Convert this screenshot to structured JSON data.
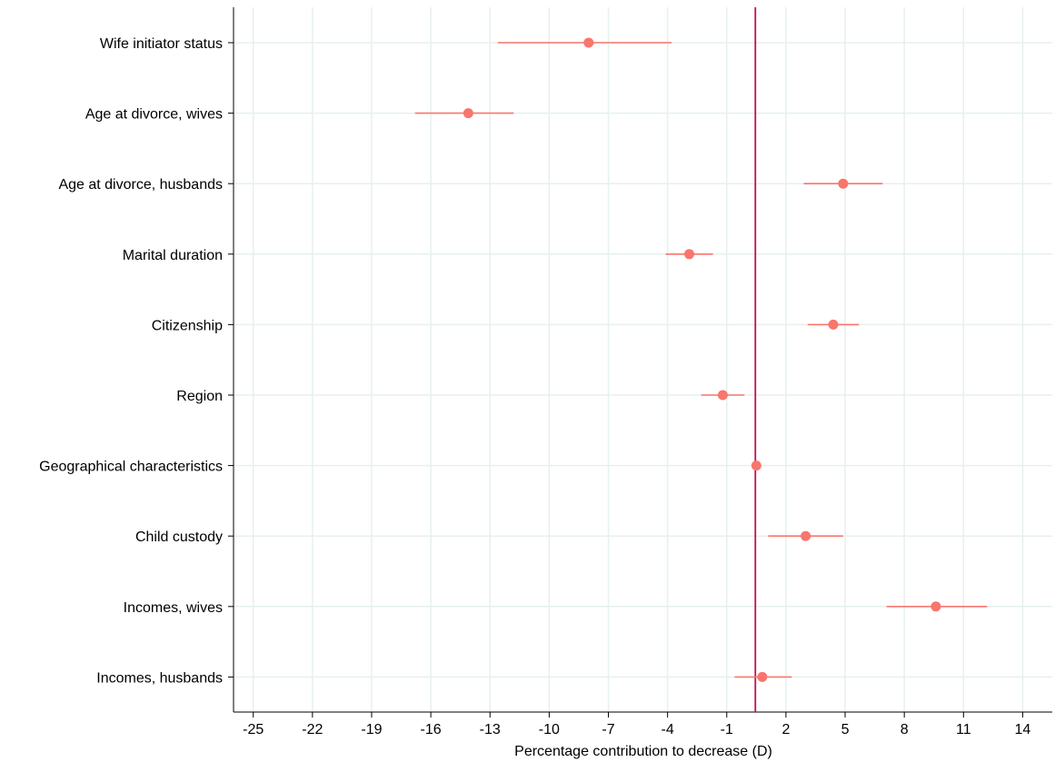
{
  "chart_data": {
    "type": "scatter",
    "title": "",
    "xlabel": "Percentage contribution to decrease (D)",
    "ylabel": "",
    "xlim": [
      -26,
      15.5
    ],
    "xticks": [
      -25,
      -22,
      -19,
      -16,
      -13,
      -10,
      -7,
      -4,
      -1,
      2,
      5,
      8,
      11,
      14
    ],
    "xtick_labels": [
      "-25",
      "-22",
      "-19",
      "-16",
      "-13",
      "-10",
      "-7",
      "-4",
      "-1",
      "2",
      "5",
      "8",
      "11",
      "14"
    ],
    "reference_line": 0.45,
    "grid": true,
    "legend": "none",
    "colors": {
      "point": "#f8766d",
      "reference": "#c0104a",
      "grid": "#e6f0ef"
    },
    "series": [
      {
        "categories": [
          "Wife initiator status",
          "Age at divorce, wives",
          "Age at divorce, husbands",
          "Marital duration",
          "Citizenship",
          "Region",
          "Geographical characteristics",
          "Child custody",
          "Incomes, wives",
          "Incomes, husbands"
        ],
        "estimate": [
          -8.0,
          -14.1,
          4.9,
          -2.9,
          4.4,
          -1.2,
          0.5,
          3.0,
          9.6,
          0.8
        ],
        "ci_low": [
          -12.6,
          -16.8,
          2.9,
          -4.1,
          3.1,
          -2.3,
          0.5,
          1.1,
          7.1,
          -0.6
        ],
        "ci_high": [
          -3.8,
          -11.8,
          6.9,
          -1.7,
          5.7,
          -0.1,
          0.5,
          4.9,
          12.2,
          2.3
        ]
      }
    ]
  }
}
